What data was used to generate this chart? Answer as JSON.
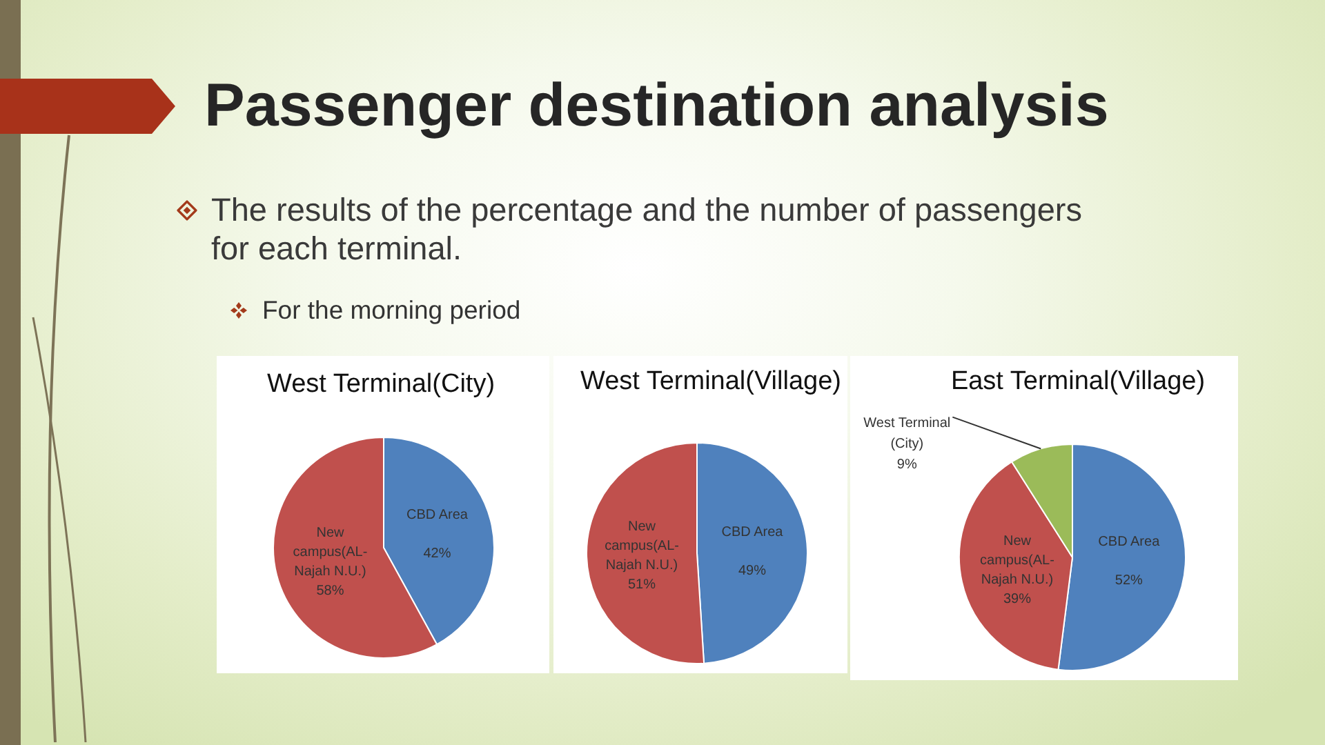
{
  "chart_data": [
    {
      "type": "other",
      "title": "Passenger destination analysis",
      "annotations": [
        "The results of the percentage and the number of passengers for each terminal.",
        "For the morning period"
      ]
    },
    {
      "type": "pie",
      "title": "West Terminal(City)",
      "categories": [
        "CBD Area",
        "New campus(AL-Najah N.U.)"
      ],
      "values": [
        42,
        58
      ],
      "colors": [
        "#4f81bd",
        "#c0504d"
      ],
      "value_labels": [
        "42%",
        "58%"
      ]
    },
    {
      "type": "pie",
      "title": "West Terminal(Village)",
      "categories": [
        "CBD Area",
        "New campus(AL-Najah N.U.)"
      ],
      "values": [
        49,
        51
      ],
      "colors": [
        "#4f81bd",
        "#c0504d"
      ],
      "value_labels": [
        "49%",
        "51%"
      ]
    },
    {
      "type": "pie",
      "title": "East Terminal(Village)",
      "categories": [
        "CBD Area",
        "New campus(AL-Najah N.U.)",
        "West Terminal (City)"
      ],
      "values": [
        52,
        39,
        9
      ],
      "colors": [
        "#4f81bd",
        "#c0504d",
        "#9bbb59"
      ],
      "value_labels": [
        "52%",
        "39%",
        "9%"
      ]
    }
  ]
}
